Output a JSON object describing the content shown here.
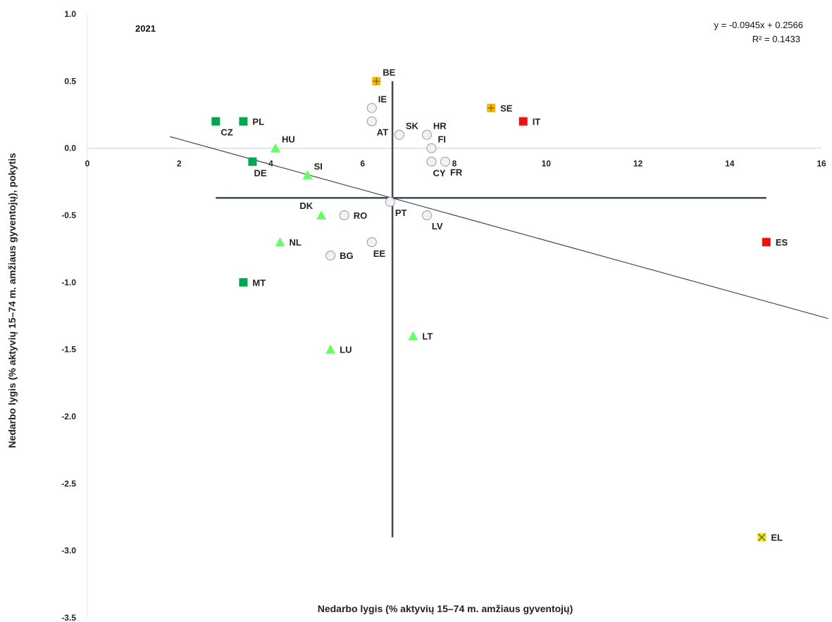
{
  "chart_data": {
    "type": "scatter",
    "year_label": "2021",
    "xlabel": "Nedarbo lygis (% aktyvių 15–74 m. amžiaus gyventojų)",
    "ylabel": "Nedarbo lygis (% aktyvių 15–74 m. amžiaus gyventojų), pokytis",
    "xlim": [
      0,
      16
    ],
    "ylim": [
      -3.5,
      1.0
    ],
    "x_ticks": [
      0,
      2,
      4,
      6,
      8,
      10,
      12,
      14,
      16
    ],
    "x_tick_labels": [
      "0",
      "2",
      "4",
      "6",
      "8",
      "10",
      "12",
      "14",
      "16"
    ],
    "y_ticks": [
      1.0,
      0.5,
      0.0,
      -0.5,
      -1.0,
      -1.5,
      -2.0,
      -2.5,
      -3.0,
      -3.5
    ],
    "y_tick_labels": [
      "1.0",
      "0.5",
      "0.0",
      "-0.5",
      "-1.0",
      "-1.5",
      "-2.0",
      "-2.5",
      "-3.0",
      "-3.5"
    ],
    "grid": false,
    "trendline": {
      "slope": -0.0945,
      "intercept": 0.2566,
      "x_range": [
        1.8,
        16.15
      ],
      "equation": "y = -0.0945x + 0.2566",
      "r_squared": "R² = 0.1433"
    },
    "reference_lines": {
      "x_value": 6.65,
      "x_line_y_range": [
        -2.9,
        0.5
      ],
      "y_value": -0.37,
      "y_line_x_range": [
        2.8,
        14.8
      ]
    },
    "colors": {
      "dark_green": "#00a651",
      "light_green": "#66ff66",
      "orange": "#f5b800",
      "red": "#ee1111",
      "yellow": "#e8e800",
      "circle_fill": "#f2f2f2",
      "circle_stroke": "#999999",
      "reference_line": "#3a4a5a",
      "trend_line": "#3a3a4a"
    },
    "points": [
      {
        "label": "BE",
        "x": 6.3,
        "y": 0.5,
        "marker": "square-plus",
        "color": "orange",
        "label_pos": "ne"
      },
      {
        "label": "SE",
        "x": 8.8,
        "y": 0.3,
        "marker": "square-plus",
        "color": "orange",
        "label_pos": "e"
      },
      {
        "label": "IT",
        "x": 9.5,
        "y": 0.2,
        "marker": "square",
        "color": "red",
        "label_pos": "e"
      },
      {
        "label": "ES",
        "x": 14.8,
        "y": -0.7,
        "marker": "square",
        "color": "red",
        "label_pos": "e"
      },
      {
        "label": "EL",
        "x": 14.7,
        "y": -2.9,
        "marker": "square-x",
        "color": "yellow",
        "label_pos": "e"
      },
      {
        "label": "CZ",
        "x": 2.8,
        "y": 0.2,
        "marker": "square",
        "color": "dark_green",
        "label_pos": "se"
      },
      {
        "label": "PL",
        "x": 3.4,
        "y": 0.2,
        "marker": "square",
        "color": "dark_green",
        "label_pos": "e"
      },
      {
        "label": "DE",
        "x": 3.6,
        "y": -0.1,
        "marker": "square",
        "color": "dark_green",
        "label_pos": "s"
      },
      {
        "label": "MT",
        "x": 3.4,
        "y": -1.0,
        "marker": "square",
        "color": "dark_green",
        "label_pos": "e"
      },
      {
        "label": "HU",
        "x": 4.1,
        "y": 0.0,
        "marker": "triangle",
        "color": "light_green",
        "label_pos": "ne"
      },
      {
        "label": "SI",
        "x": 4.8,
        "y": -0.2,
        "marker": "triangle",
        "color": "light_green",
        "label_pos": "ne"
      },
      {
        "label": "DK",
        "x": 5.1,
        "y": -0.5,
        "marker": "triangle",
        "color": "light_green",
        "label_pos": "nw"
      },
      {
        "label": "NL",
        "x": 4.2,
        "y": -0.7,
        "marker": "triangle",
        "color": "light_green",
        "label_pos": "e"
      },
      {
        "label": "LT",
        "x": 7.1,
        "y": -1.4,
        "marker": "triangle",
        "color": "light_green",
        "label_pos": "e"
      },
      {
        "label": "LU",
        "x": 5.3,
        "y": -1.5,
        "marker": "triangle",
        "color": "light_green",
        "label_pos": "e"
      },
      {
        "label": "IE",
        "x": 6.2,
        "y": 0.3,
        "marker": "circle",
        "label_pos": "ne"
      },
      {
        "label": "AT",
        "x": 6.2,
        "y": 0.2,
        "marker": "circle",
        "label_pos": "se"
      },
      {
        "label": "SK",
        "x": 6.8,
        "y": 0.1,
        "marker": "circle",
        "label_pos": "ne"
      },
      {
        "label": "HR",
        "x": 7.4,
        "y": 0.1,
        "marker": "circle",
        "label_pos": "ne"
      },
      {
        "label": "FI",
        "x": 7.5,
        "y": 0.0,
        "marker": "circle",
        "label_pos": "ne"
      },
      {
        "label": "CY",
        "x": 7.5,
        "y": -0.1,
        "marker": "circle",
        "label_pos": "s"
      },
      {
        "label": "FR",
        "x": 7.8,
        "y": -0.1,
        "marker": "circle",
        "label_pos": "se"
      },
      {
        "label": "PT",
        "x": 6.6,
        "y": -0.4,
        "marker": "circle",
        "label_pos": "se"
      },
      {
        "label": "LV",
        "x": 7.4,
        "y": -0.5,
        "marker": "circle",
        "label_pos": "se"
      },
      {
        "label": "RO",
        "x": 5.6,
        "y": -0.5,
        "marker": "circle",
        "label_pos": "e"
      },
      {
        "label": "EE",
        "x": 6.2,
        "y": -0.7,
        "marker": "circle",
        "label_pos": "s"
      },
      {
        "label": "BG",
        "x": 5.3,
        "y": -0.8,
        "marker": "circle",
        "label_pos": "e"
      }
    ]
  }
}
